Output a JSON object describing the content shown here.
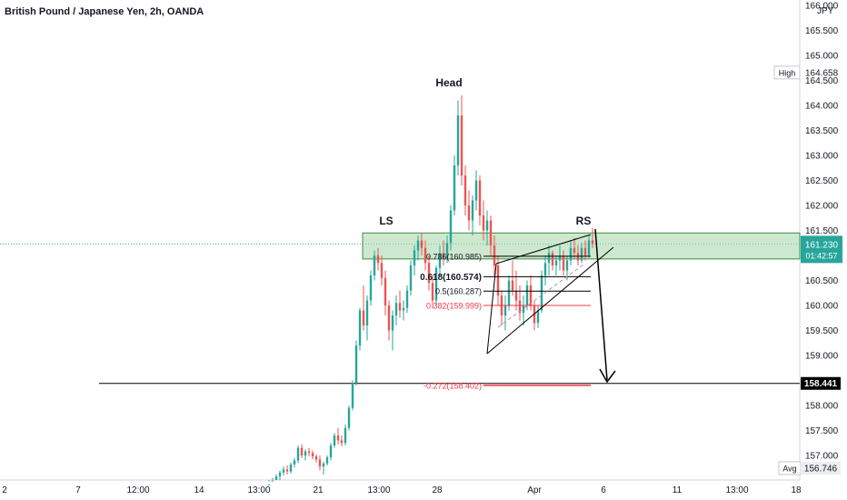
{
  "header": {
    "title": "British Pound / Japanese Yen, 2h, OANDA",
    "currency": "JPY"
  },
  "colors": {
    "up": "#26a69a",
    "down": "#ef5350",
    "zone_fill": "#a5d6a7",
    "zone_border": "#388e3c",
    "fib_red": "#f23645",
    "black": "#000000",
    "price_badge": "#26a69a"
  },
  "chart_data": {
    "type": "candlestick",
    "title": "British Pound / Japanese Yen, 2h, OANDA",
    "y_axis": {
      "position": "right",
      "min": 156.5,
      "max": 166.3,
      "ticks": [
        157.0,
        157.5,
        158.0,
        158.5,
        159.0,
        159.5,
        160.0,
        160.5,
        161.0,
        161.5,
        162.0,
        162.5,
        163.0,
        163.5,
        164.0,
        164.5,
        165.0,
        165.5,
        166.0
      ],
      "tick_labels": [
        "157.000",
        "157.500",
        "158.000",
        "158.500",
        "159.000",
        "159.500",
        "160.000",
        "160.500",
        "161.000",
        "161.500",
        "162.000",
        "162.500",
        "163.000",
        "163.500",
        "164.000",
        "164.500",
        "165.000",
        "165.500",
        "166.000"
      ]
    },
    "x_axis": {
      "tick_labels": [
        "2",
        "7",
        "12:00",
        "14",
        "13:00",
        "21",
        "13:00",
        "28",
        "Apr",
        "6",
        "11",
        "13:00",
        "18"
      ]
    },
    "markers": {
      "high": {
        "label": "High",
        "value": 164.658,
        "text": "164.658"
      },
      "avg": {
        "label": "Avg",
        "value": 156.746,
        "text": "156.746"
      },
      "current": {
        "value": 161.23,
        "text": "161.230",
        "countdown": "01:42:57"
      },
      "target": {
        "value": 158.441,
        "text": "158.441"
      }
    },
    "annotations": {
      "ls": "LS",
      "head": "Head",
      "rs": "RS",
      "fib_0786": "0.786(160.985)",
      "fib_0618": "0.618(160.574)",
      "fib_05": "0.5(160.287)",
      "fib_0382": "0.382(159.999)",
      "fib_ext": "-0.272(158.402)"
    },
    "levels": {
      "fib_0786": 160.985,
      "fib_0618": 160.574,
      "fib_05": 160.287,
      "fib_0382": 159.999,
      "fib_ext": 158.402,
      "zone_top": 161.45,
      "zone_bottom": 160.93,
      "support": 158.441
    },
    "candles": [
      [
        156.4,
        156.48,
        156.3,
        156.42
      ],
      [
        156.42,
        156.55,
        156.35,
        156.5
      ],
      [
        156.5,
        156.62,
        156.44,
        156.58
      ],
      [
        156.58,
        156.7,
        156.5,
        156.66
      ],
      [
        156.66,
        156.78,
        156.6,
        156.72
      ],
      [
        156.72,
        156.8,
        156.62,
        156.68
      ],
      [
        156.68,
        156.86,
        156.64,
        156.82
      ],
      [
        156.82,
        156.95,
        156.76,
        156.9
      ],
      [
        156.9,
        157.2,
        156.85,
        157.15
      ],
      [
        157.15,
        157.22,
        156.95,
        157.0
      ],
      [
        157.0,
        157.12,
        156.9,
        157.08
      ],
      [
        157.08,
        157.15,
        156.98,
        157.05
      ],
      [
        157.05,
        157.1,
        156.92,
        156.98
      ],
      [
        156.98,
        157.02,
        156.86,
        156.92
      ],
      [
        156.92,
        157.0,
        156.7,
        156.78
      ],
      [
        156.78,
        156.88,
        156.62,
        156.84
      ],
      [
        156.84,
        157.0,
        156.8,
        156.96
      ],
      [
        156.96,
        157.25,
        156.9,
        157.2
      ],
      [
        157.2,
        157.45,
        157.15,
        157.4
      ],
      [
        157.4,
        157.55,
        157.22,
        157.3
      ],
      [
        157.3,
        157.4,
        157.18,
        157.25
      ],
      [
        157.25,
        157.62,
        157.2,
        157.55
      ],
      [
        157.55,
        158.0,
        157.5,
        157.95
      ],
      [
        157.95,
        158.5,
        157.9,
        158.45
      ],
      [
        158.45,
        159.3,
        158.4,
        159.2
      ],
      [
        159.2,
        159.95,
        159.1,
        159.9
      ],
      [
        159.9,
        160.4,
        159.5,
        159.6
      ],
      [
        159.6,
        160.2,
        159.3,
        160.1
      ],
      [
        160.1,
        160.7,
        160.0,
        160.6
      ],
      [
        160.6,
        161.1,
        160.5,
        161.0
      ],
      [
        161.0,
        161.15,
        160.7,
        160.85
      ],
      [
        160.85,
        161.0,
        160.4,
        160.55
      ],
      [
        160.55,
        160.7,
        159.8,
        160.0
      ],
      [
        160.0,
        160.1,
        159.3,
        159.5
      ],
      [
        159.5,
        159.9,
        159.1,
        159.8
      ],
      [
        159.8,
        160.2,
        159.6,
        160.05
      ],
      [
        160.05,
        160.3,
        159.75,
        159.9
      ],
      [
        159.9,
        160.1,
        159.7,
        159.95
      ],
      [
        159.95,
        160.4,
        159.85,
        160.3
      ],
      [
        160.3,
        160.9,
        160.2,
        160.8
      ],
      [
        160.8,
        161.2,
        160.6,
        161.1
      ],
      [
        161.1,
        161.4,
        160.9,
        161.3
      ],
      [
        161.3,
        161.45,
        161.0,
        161.15
      ],
      [
        161.15,
        161.3,
        160.7,
        160.85
      ],
      [
        160.85,
        161.0,
        160.3,
        160.45
      ],
      [
        160.45,
        160.6,
        159.95,
        160.1
      ],
      [
        160.1,
        160.8,
        160.0,
        160.75
      ],
      [
        160.75,
        161.2,
        160.6,
        161.05
      ],
      [
        161.05,
        161.3,
        160.8,
        160.95
      ],
      [
        160.95,
        161.4,
        160.85,
        161.25
      ],
      [
        161.25,
        162.0,
        161.1,
        161.9
      ],
      [
        161.9,
        163.0,
        161.8,
        162.8
      ],
      [
        162.8,
        164.1,
        162.6,
        163.8
      ],
      [
        163.8,
        164.2,
        162.4,
        162.6
      ],
      [
        162.6,
        162.8,
        161.8,
        162.0
      ],
      [
        162.0,
        162.3,
        161.5,
        161.7
      ],
      [
        161.7,
        162.2,
        161.4,
        162.1
      ],
      [
        162.1,
        162.7,
        161.9,
        162.5
      ],
      [
        162.5,
        162.6,
        161.6,
        161.8
      ],
      [
        161.8,
        162.1,
        161.3,
        161.5
      ],
      [
        161.5,
        161.9,
        161.2,
        161.7
      ],
      [
        161.7,
        161.8,
        161.0,
        161.2
      ],
      [
        161.2,
        161.4,
        160.6,
        160.8
      ],
      [
        160.8,
        161.0,
        160.0,
        160.2
      ],
      [
        160.2,
        160.3,
        159.6,
        159.8
      ],
      [
        159.8,
        160.2,
        159.5,
        160.0
      ],
      [
        160.0,
        160.6,
        159.9,
        160.5
      ],
      [
        160.5,
        160.9,
        160.2,
        160.3
      ],
      [
        160.3,
        160.7,
        159.9,
        160.1
      ],
      [
        160.1,
        160.4,
        159.7,
        159.85
      ],
      [
        159.85,
        160.2,
        159.6,
        160.0
      ],
      [
        160.0,
        160.5,
        159.9,
        160.4
      ],
      [
        160.4,
        160.6,
        159.9,
        160.0
      ],
      [
        160.0,
        160.1,
        159.5,
        159.65
      ],
      [
        159.65,
        160.0,
        159.55,
        159.9
      ],
      [
        159.9,
        160.7,
        159.85,
        160.6
      ],
      [
        160.6,
        161.0,
        160.4,
        160.85
      ],
      [
        160.85,
        161.2,
        160.6,
        161.05
      ],
      [
        161.05,
        161.1,
        160.7,
        160.8
      ],
      [
        160.8,
        161.0,
        160.6,
        160.9
      ],
      [
        160.9,
        161.2,
        160.7,
        161.0
      ],
      [
        161.0,
        161.1,
        160.6,
        160.7
      ],
      [
        160.7,
        161.0,
        160.5,
        160.9
      ],
      [
        160.9,
        161.3,
        160.8,
        161.15
      ],
      [
        161.15,
        161.35,
        160.95,
        161.05
      ],
      [
        161.05,
        161.2,
        160.8,
        160.9
      ],
      [
        160.9,
        161.25,
        160.85,
        161.15
      ],
      [
        161.15,
        161.3,
        160.9,
        161.0
      ],
      [
        161.0,
        161.4,
        160.95,
        161.3
      ],
      [
        161.3,
        161.55,
        161.15,
        161.23
      ]
    ]
  }
}
